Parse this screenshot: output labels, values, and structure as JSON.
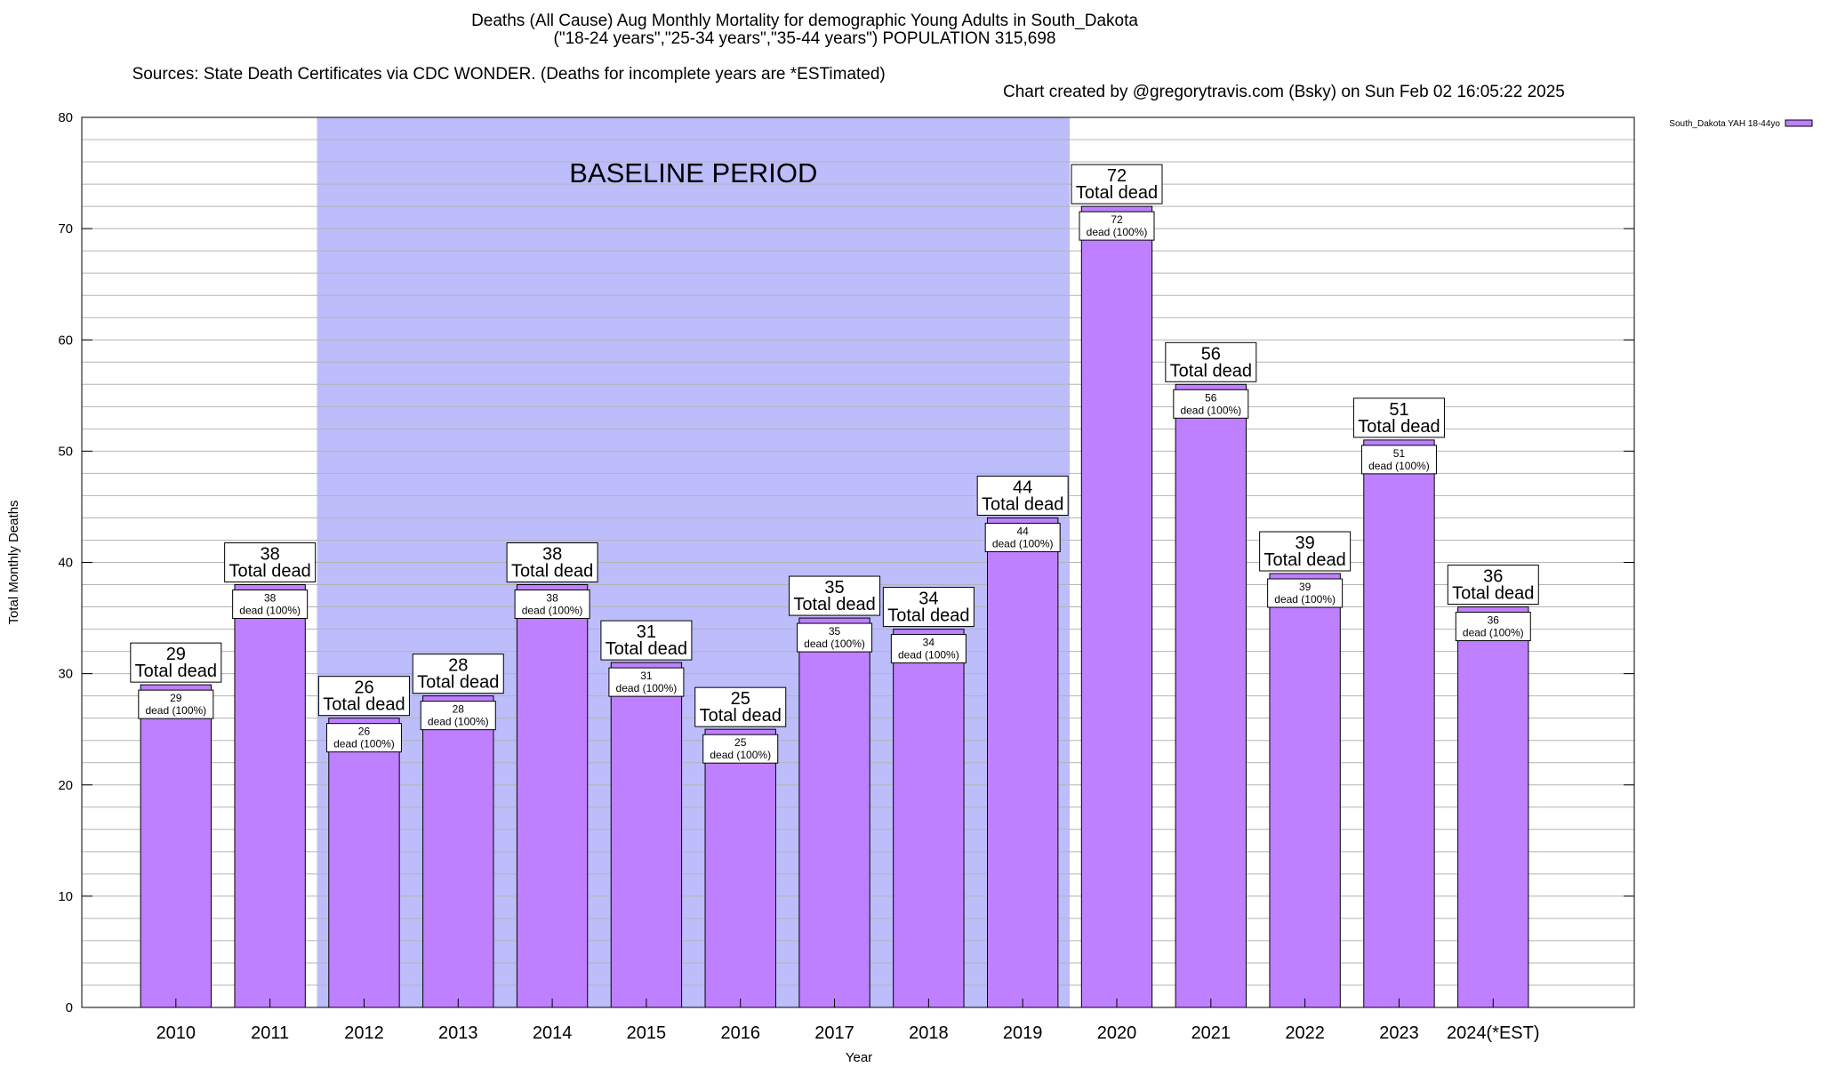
{
  "chart_data": {
    "type": "bar",
    "title": "Deaths (All Cause) Aug Monthly Mortality for demographic Young Adults in South_Dakota",
    "subtitle": "(\"18-24 years\",\"25-34 years\",\"35-44 years\") POPULATION 315,698",
    "sources": "Sources: State Death Certificates via CDC WONDER. (Deaths for incomplete years are *ESTimated)",
    "credit": "Chart created by @gregorytravis.com (Bsky) on Sun Feb 02 16:05:22 2025",
    "xlabel": "Year",
    "ylabel": "Total Monthly Deaths",
    "ylim": [
      0,
      80
    ],
    "yticks": [
      0,
      10,
      20,
      30,
      40,
      50,
      60,
      70,
      80
    ],
    "grid": true,
    "legend_position": "top-right",
    "baseline_label": "BASELINE PERIOD",
    "baseline_range": [
      "2012",
      "2019"
    ],
    "categories": [
      "2010",
      "2011",
      "2012",
      "2013",
      "2014",
      "2015",
      "2016",
      "2017",
      "2018",
      "2019",
      "2020",
      "2021",
      "2022",
      "2023",
      "2024(*EST)"
    ],
    "series": [
      {
        "name": "South_Dakota YAH 18-44yo",
        "values": [
          29,
          38,
          26,
          28,
          38,
          31,
          25,
          35,
          34,
          44,
          72,
          56,
          39,
          51,
          36
        ]
      }
    ],
    "total_label": "Total dead",
    "inner_label": "dead (100%)",
    "colors": {
      "bar": "#bf80ff",
      "baseline": "#bdbdfc",
      "grid": "#b4b4b4"
    }
  }
}
